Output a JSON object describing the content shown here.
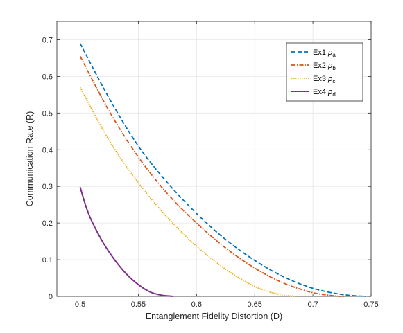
{
  "chart_data": {
    "type": "line",
    "title": "",
    "xlabel": "Entanglement Fidelity Distortion (D)",
    "ylabel": "Communication Rate (R)",
    "xlim": [
      0.48,
      0.75
    ],
    "ylim": [
      0,
      0.75
    ],
    "grid": true,
    "legend_position": "top-right",
    "x_ticks": [
      0.5,
      0.55,
      0.6,
      0.65,
      0.7,
      0.75
    ],
    "x_tick_labels": [
      "0.5",
      "0.55",
      "0.6",
      "0.65",
      "0.7",
      "0.75"
    ],
    "y_ticks": [
      0,
      0.1,
      0.2,
      0.3,
      0.4,
      0.5,
      0.6,
      0.7
    ],
    "y_tick_labels": [
      "0",
      "0.1",
      "0.2",
      "0.3",
      "0.4",
      "0.5",
      "0.6",
      "0.7"
    ],
    "series": [
      {
        "name": "Ex1:",
        "greek": "ρ",
        "subscript": "a",
        "color": "#0072BD",
        "dash": "dashed",
        "x": [
          0.5,
          0.525,
          0.55,
          0.575,
          0.6,
          0.625,
          0.65,
          0.675,
          0.7,
          0.725,
          0.745
        ],
        "y": [
          0.69,
          0.54,
          0.41,
          0.31,
          0.226,
          0.155,
          0.098,
          0.053,
          0.022,
          0.005,
          0.0
        ]
      },
      {
        "name": "Ex2:",
        "greek": "ρ",
        "subscript": "b",
        "color": "#D95319",
        "dash": "dashdot",
        "x": [
          0.5,
          0.525,
          0.55,
          0.575,
          0.6,
          0.625,
          0.65,
          0.675,
          0.7,
          0.72,
          0.727
        ],
        "y": [
          0.655,
          0.505,
          0.38,
          0.28,
          0.2,
          0.132,
          0.077,
          0.036,
          0.01,
          0.001,
          0.0
        ]
      },
      {
        "name": "Ex3:",
        "greek": "ρ",
        "subscript": "c",
        "color": "#EDB120",
        "dash": "dotted",
        "x": [
          0.5,
          0.525,
          0.55,
          0.575,
          0.6,
          0.625,
          0.65,
          0.67,
          0.685
        ],
        "y": [
          0.57,
          0.425,
          0.31,
          0.215,
          0.137,
          0.074,
          0.027,
          0.006,
          0.0
        ]
      },
      {
        "name": "Ex4:",
        "greek": "ρ",
        "subscript": "d",
        "color": "#7E2F8E",
        "dash": "solid",
        "x": [
          0.5,
          0.505,
          0.51,
          0.52,
          0.53,
          0.54,
          0.55,
          0.56,
          0.57,
          0.58
        ],
        "y": [
          0.298,
          0.245,
          0.205,
          0.145,
          0.098,
          0.06,
          0.032,
          0.012,
          0.003,
          0.0
        ]
      }
    ]
  }
}
